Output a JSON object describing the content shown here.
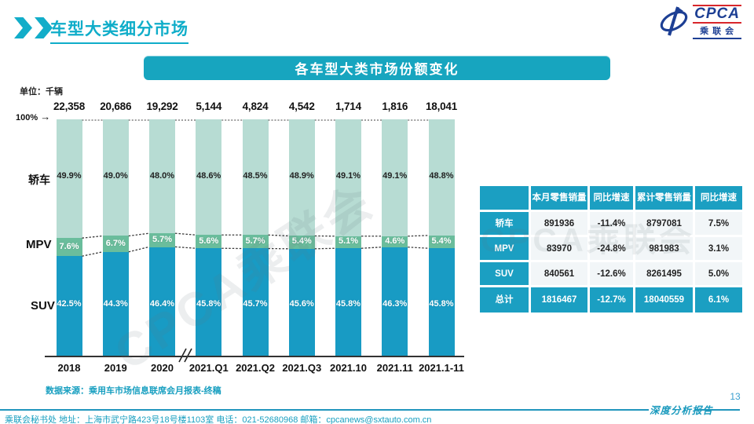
{
  "page": {
    "title": "车型大类细分市场",
    "page_number": "13",
    "report_label": "深度分析报告",
    "source_note": "数据来源：乘用车市场信息联席会月报表-终稿",
    "footer_contact": "乘联会秘书处  地址：上海市武宁路423号18号楼1103室  电话：021-52680968  邮箱：cpcanews@sxtauto.com.cn"
  },
  "logo": {
    "main": "CPCA",
    "sub": "乘联会"
  },
  "banner": {
    "title": "各车型大类市场份额变化"
  },
  "chart_data": {
    "type": "bar",
    "subtype": "100%-stacked-column",
    "title": "各车型大类市场份额变化",
    "unit_label": "单位：千辆",
    "y100_label": "100%",
    "categories": [
      "2018",
      "2019",
      "2020",
      "2021.Q1",
      "2021.Q2",
      "2021.Q3",
      "2021.10",
      "2021.11",
      "2021.1-11"
    ],
    "totals": [
      "22,358",
      "20,686",
      "19,292",
      "5,144",
      "4,824",
      "4,542",
      "1,714",
      "1,816",
      "18,041"
    ],
    "series": [
      {
        "name": "轿车",
        "color": "#b7dcd3",
        "values": [
          49.9,
          49.0,
          48.0,
          48.6,
          48.5,
          48.9,
          49.1,
          49.1,
          48.8
        ]
      },
      {
        "name": "MPV",
        "color": "#6abd9c",
        "values": [
          7.6,
          6.7,
          5.7,
          5.6,
          5.7,
          5.4,
          5.1,
          4.6,
          5.4
        ]
      },
      {
        "name": "SUV",
        "color": "#189bc4",
        "values": [
          42.5,
          44.3,
          46.4,
          45.8,
          45.7,
          45.6,
          45.8,
          46.3,
          45.8
        ]
      }
    ],
    "ylim": [
      0,
      100
    ],
    "grid": false,
    "legend_position": "left-of-bars",
    "axis_break_after_category": "2020",
    "watermark": "CPCA乘联会"
  },
  "table": {
    "headers": [
      "",
      "本月零售销量",
      "同比增速",
      "累计零售销量",
      "同比增速"
    ],
    "rows": [
      {
        "label": "轿车",
        "cells": [
          "891936",
          "-11.4%",
          "8797081",
          "7.5%"
        ],
        "total": false
      },
      {
        "label": "MPV",
        "cells": [
          "83970",
          "-24.8%",
          "981983",
          "3.1%"
        ],
        "total": false
      },
      {
        "label": "SUV",
        "cells": [
          "840561",
          "-12.6%",
          "8261495",
          "5.0%"
        ],
        "total": false
      },
      {
        "label": "总计",
        "cells": [
          "1816467",
          "-12.7%",
          "18040559",
          "6.1%"
        ],
        "total": true
      }
    ]
  },
  "colors": {
    "accent_teal": "#17a5bf",
    "table_teal": "#1b9fc2",
    "heading_cyan": "#0fadc9",
    "footer_teal": "#189fc0",
    "logo_blue": "#1d3f94",
    "logo_red": "#d8262b",
    "sedan_segment": "#b7dcd3",
    "mpv_segment": "#6abd9c",
    "suv_segment": "#189bc4"
  }
}
